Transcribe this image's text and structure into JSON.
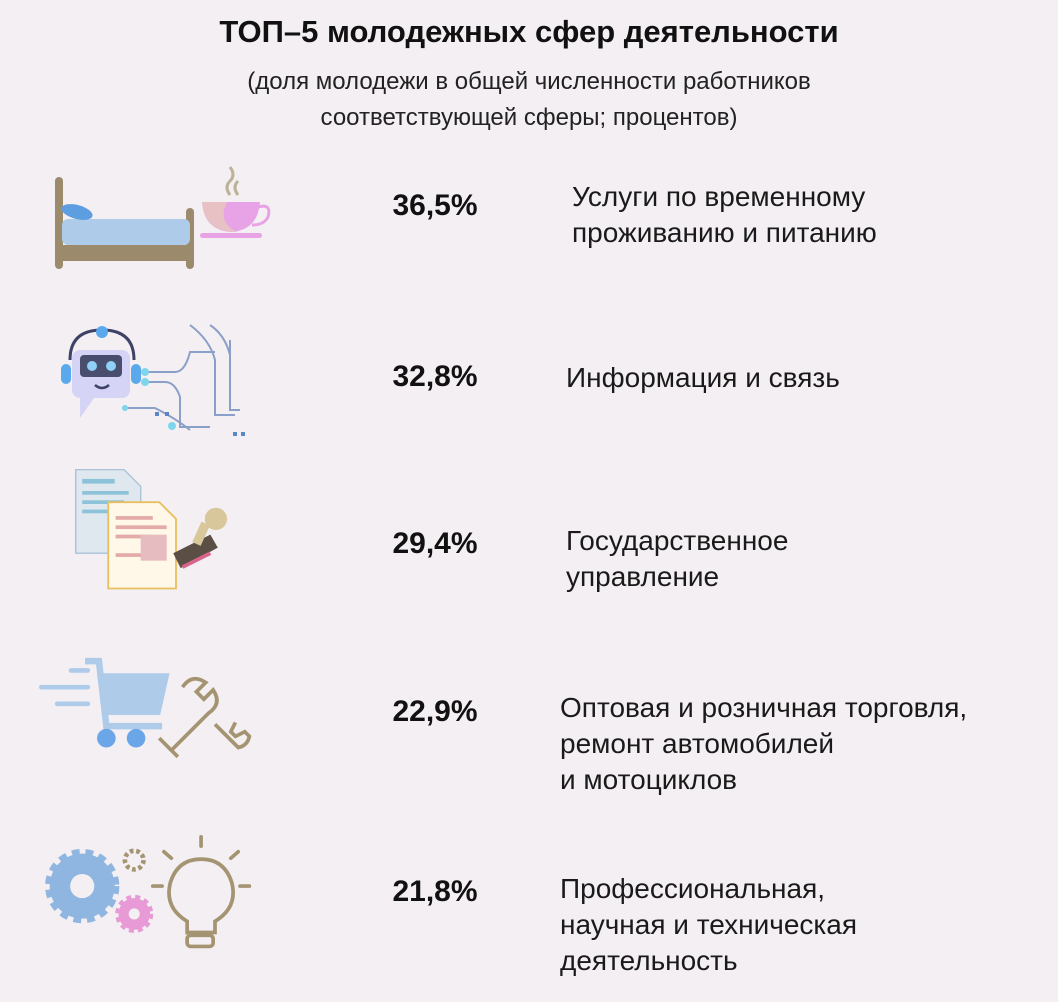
{
  "title": "ТОП–5 молодежных сфер деятельности",
  "subtitle": [
    "(доля молодежи в общей численности работников",
    "соответствующей сферы; процентов)"
  ],
  "colors": {
    "background": "#f3eff2",
    "text": "#111111"
  },
  "chart_data": {
    "type": "table",
    "title": "ТОП–5 молодежных сфер деятельности",
    "unit": "%",
    "categories": [
      [
        "Услуги по временному",
        "проживанию и питанию"
      ],
      [
        "Информация и связь"
      ],
      [
        "Государственное",
        "управление"
      ],
      [
        "Оптовая и розничная торговля,",
        "ремонт автомобилей",
        "и мотоциклов"
      ],
      [
        "Профессиональная,",
        "научная и техническая",
        "деятельность"
      ]
    ],
    "values": [
      36.5,
      32.8,
      29.4,
      22.9,
      21.8
    ],
    "value_labels": [
      "36,5%",
      "32,8%",
      "29,4%",
      "22,9%",
      "21,8%"
    ],
    "icons": [
      "bed-and-cup-icon",
      "robot-circuit-icon",
      "documents-stamp-icon",
      "cart-wrench-icon",
      "gears-lightbulb-icon"
    ]
  }
}
